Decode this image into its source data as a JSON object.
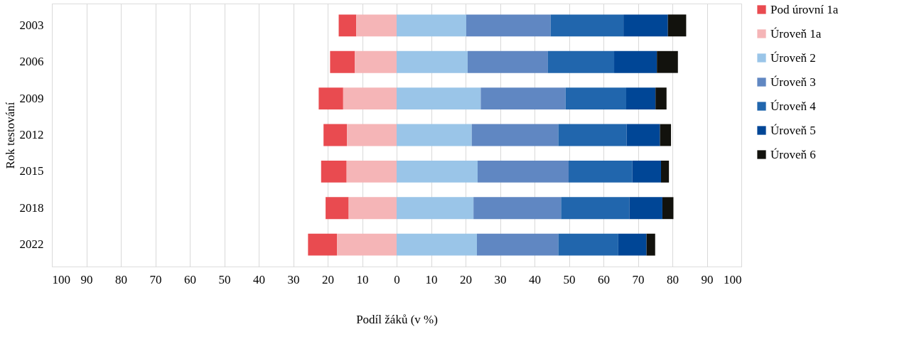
{
  "chart_data": {
    "type": "bar",
    "orientation": "horizontal",
    "stacked": true,
    "xlabel": "Podíl žáků (v %)",
    "ylabel": "Rok testování",
    "categories": [
      "2003",
      "2006",
      "2009",
      "2012",
      "2015",
      "2018",
      "2022"
    ],
    "series": [
      {
        "name": "Pod úrovní 1a",
        "color": "#e94b50",
        "values": [
          -5.1,
          -7.2,
          -7.1,
          -6.8,
          -7.4,
          -6.7,
          -8.4
        ]
      },
      {
        "name": "Úroveň 1a",
        "color": "#f5b5b7",
        "values": [
          -11.7,
          -12.1,
          -15.5,
          -14.4,
          -14.5,
          -13.9,
          -17.3
        ]
      },
      {
        "name": "Úroveň 2",
        "color": "#9ac5e8",
        "values": [
          20.2,
          20.6,
          24.4,
          21.8,
          23.5,
          22.3,
          23.3
        ]
      },
      {
        "name": "Úroveň 3",
        "color": "#6087c2",
        "values": [
          24.5,
          23.3,
          24.6,
          25.1,
          26.4,
          25.4,
          23.6
        ]
      },
      {
        "name": "Úroveň 4",
        "color": "#2166ad",
        "values": [
          21.1,
          19.2,
          17.6,
          19.8,
          18.5,
          19.8,
          17.4
        ]
      },
      {
        "name": "Úroveň 5",
        "color": "#004696",
        "values": [
          12.9,
          12.4,
          8.5,
          9.7,
          8.3,
          9.6,
          8.2
        ]
      },
      {
        "name": "Úroveň 6",
        "color": "#12120d",
        "values": [
          5.3,
          6.1,
          3.2,
          3.2,
          2.3,
          3.2,
          2.5
        ]
      }
    ],
    "xlim": [
      -100,
      100
    ],
    "xticks": [
      {
        "value": -100,
        "label": "100"
      },
      {
        "value": -90,
        "label": "90"
      },
      {
        "value": -80,
        "label": "80"
      },
      {
        "value": -70,
        "label": "70"
      },
      {
        "value": -60,
        "label": "60"
      },
      {
        "value": -50,
        "label": "50"
      },
      {
        "value": -40,
        "label": "40"
      },
      {
        "value": -30,
        "label": "30"
      },
      {
        "value": -20,
        "label": "20"
      },
      {
        "value": -10,
        "label": "10"
      },
      0,
      10,
      20,
      30,
      40,
      50,
      60,
      70,
      80,
      90,
      100
    ],
    "grid": "x",
    "legend": "right"
  }
}
